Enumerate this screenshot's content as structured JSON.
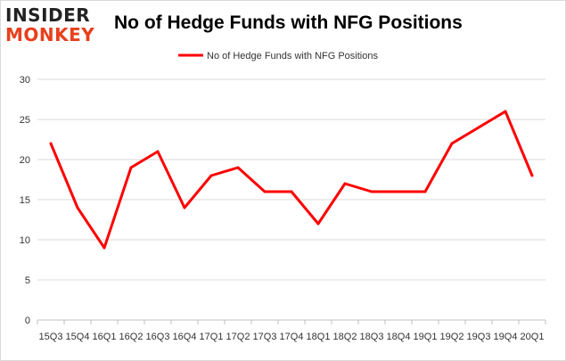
{
  "logo": {
    "line1": "INSIDER",
    "line2": "MONKEY"
  },
  "chart_data": {
    "type": "line",
    "title": "No of Hedge Funds with NFG Positions",
    "xlabel": "",
    "ylabel": "",
    "categories": [
      "15Q3",
      "15Q4",
      "16Q1",
      "16Q2",
      "16Q3",
      "16Q4",
      "17Q1",
      "17Q2",
      "17Q3",
      "17Q4",
      "18Q1",
      "18Q2",
      "18Q3",
      "18Q4",
      "19Q1",
      "19Q2",
      "19Q3",
      "19Q4",
      "20Q1"
    ],
    "series": [
      {
        "name": "No of Hedge Funds with NFG Positions",
        "color": "#ff0000",
        "values": [
          22,
          14,
          9,
          19,
          21,
          14,
          18,
          19,
          16,
          16,
          12,
          17,
          16,
          16,
          16,
          22,
          24,
          26,
          18
        ]
      }
    ],
    "ylim": [
      0,
      30
    ],
    "yticks": [
      0,
      5,
      10,
      15,
      20,
      25,
      30
    ],
    "grid": true,
    "legend": "top"
  }
}
